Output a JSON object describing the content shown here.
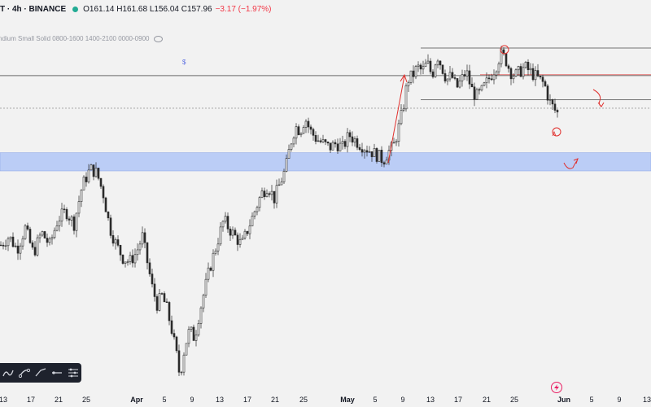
{
  "header": {
    "symbol": "T · 4h · BINANCE",
    "ohlc": "O161.14  H161.68  L156.04  C157.96",
    "change": "−3.17 (−1.97%)"
  },
  "indicator": {
    "label": "ndium Small Solid 0800-1600 1400-2100 0000-0900"
  },
  "toolbar": {
    "tools": [
      "brush-icon",
      "curve-icon",
      "path-icon",
      "line-icon",
      "settings-list-icon"
    ]
  },
  "colors": {
    "up": "#3a3a3a",
    "down": "#2a2a2a",
    "zone": "#bbcdf6",
    "annotation": "#e0302d",
    "level": "#4a4a4a",
    "background": "#f2f2f2"
  },
  "chart_data": {
    "type": "candlestick",
    "symbol": "T · 4h · BINANCE",
    "price_path_note_free": true,
    "x_ticks": [
      "13",
      "17",
      "21",
      "25",
      "Apr",
      "5",
      "9",
      "13",
      "17",
      "21",
      "25",
      "May",
      "5",
      "9",
      "13",
      "17",
      "21",
      "25",
      "Jun",
      "5",
      "9",
      "13"
    ],
    "x_tick_months": [
      "Apr",
      "May",
      "Jun"
    ],
    "price_path": [
      [
        0,
        110
      ],
      [
        10,
        112
      ],
      [
        20,
        109
      ],
      [
        30,
        114
      ],
      [
        40,
        108
      ],
      [
        50,
        113
      ],
      [
        60,
        110
      ],
      [
        70,
        116
      ],
      [
        80,
        118
      ],
      [
        90,
        115
      ],
      [
        100,
        124
      ],
      [
        110,
        128
      ],
      [
        118,
        127
      ],
      [
        126,
        122
      ],
      [
        134,
        114
      ],
      [
        142,
        110
      ],
      [
        150,
        107
      ],
      [
        158,
        106
      ],
      [
        166,
        108
      ],
      [
        174,
        112
      ],
      [
        180,
        106
      ],
      [
        186,
        100
      ],
      [
        192,
        96
      ],
      [
        198,
        98
      ],
      [
        204,
        95
      ],
      [
        210,
        90
      ],
      [
        216,
        84
      ],
      [
        220,
        79
      ],
      [
        226,
        86
      ],
      [
        232,
        90
      ],
      [
        238,
        88
      ],
      [
        244,
        94
      ],
      [
        250,
        99
      ],
      [
        256,
        104
      ],
      [
        262,
        108
      ],
      [
        268,
        112
      ],
      [
        274,
        116
      ],
      [
        280,
        114
      ],
      [
        288,
        112
      ],
      [
        296,
        110
      ],
      [
        304,
        114
      ],
      [
        312,
        118
      ],
      [
        320,
        122
      ],
      [
        328,
        124
      ],
      [
        336,
        121
      ],
      [
        344,
        125
      ],
      [
        350,
        128
      ],
      [
        356,
        134
      ],
      [
        362,
        138
      ],
      [
        368,
        137
      ],
      [
        374,
        140
      ],
      [
        380,
        137
      ],
      [
        388,
        135
      ],
      [
        396,
        134
      ],
      [
        404,
        133
      ],
      [
        412,
        134
      ],
      [
        420,
        133
      ],
      [
        428,
        136
      ],
      [
        434,
        135
      ],
      [
        440,
        134
      ],
      [
        448,
        133
      ],
      [
        456,
        132
      ],
      [
        464,
        131
      ],
      [
        470,
        130
      ],
      [
        476,
        132
      ],
      [
        482,
        133
      ],
      [
        488,
        137
      ],
      [
        494,
        142
      ],
      [
        500,
        149
      ],
      [
        506,
        150
      ],
      [
        512,
        152
      ],
      [
        518,
        151
      ],
      [
        524,
        153
      ],
      [
        530,
        150
      ],
      [
        536,
        155
      ],
      [
        542,
        152
      ],
      [
        548,
        149
      ],
      [
        554,
        150
      ],
      [
        560,
        147
      ],
      [
        566,
        149
      ],
      [
        572,
        151
      ],
      [
        578,
        147
      ],
      [
        584,
        145
      ],
      [
        590,
        146
      ],
      [
        596,
        148
      ],
      [
        602,
        150
      ],
      [
        608,
        152
      ],
      [
        614,
        155
      ],
      [
        620,
        154
      ],
      [
        626,
        151
      ],
      [
        632,
        150
      ],
      [
        638,
        151
      ],
      [
        644,
        152
      ],
      [
        650,
        151
      ],
      [
        656,
        150
      ],
      [
        662,
        149
      ],
      [
        668,
        148
      ],
      [
        674,
        144
      ],
      [
        680,
        142
      ],
      [
        685,
        141
      ]
    ],
    "levels": [
      {
        "value": 156.5,
        "style": "solid"
      },
      {
        "value": 150.0,
        "style": "solid"
      },
      {
        "value": 144.3,
        "style": "solid"
      },
      {
        "value": 142.3,
        "style": "dashed"
      }
    ],
    "zone": {
      "from": 127.5,
      "to": 131.8
    },
    "ylim": [
      76,
      164
    ],
    "grid": false
  }
}
